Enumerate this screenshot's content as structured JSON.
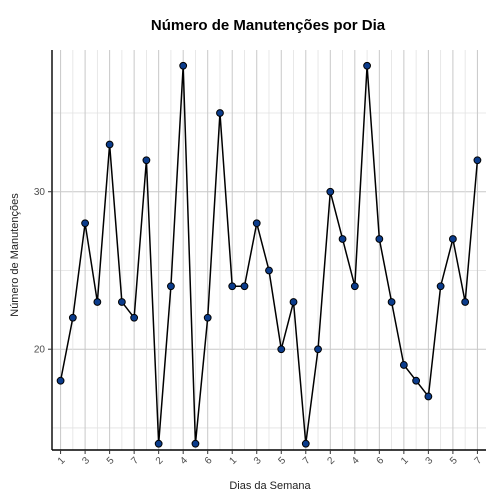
{
  "chart_data": {
    "type": "line",
    "title": "Número de Manutenções por Dia",
    "xlabel": "Dias da Semana",
    "ylabel": "Número de Manutenções",
    "x_tick_labels": [
      "1",
      "3",
      "5",
      "7",
      "2",
      "4",
      "6",
      "1",
      "3",
      "5",
      "7",
      "2",
      "4",
      "6",
      "1",
      "3",
      "5",
      "7"
    ],
    "y_ticks": [
      20,
      30
    ],
    "ylim": [
      13.6,
      39.0
    ],
    "grid": true,
    "colors": {
      "line": "#000000",
      "point_fill": "#0b3c8c"
    },
    "series": [
      {
        "x": [
          "1",
          "2",
          "3",
          "4",
          "5",
          "6",
          "7",
          "1",
          "2",
          "3",
          "4",
          "5",
          "6",
          "7",
          "1",
          "2",
          "3",
          "4",
          "5",
          "6",
          "7",
          "1",
          "2",
          "3",
          "4",
          "5",
          "6",
          "7",
          "1",
          "2",
          "3",
          "4",
          "5",
          "6",
          "7"
        ],
        "values": [
          18,
          22,
          28,
          23,
          33,
          23,
          22,
          32,
          14,
          24,
          38,
          14,
          22,
          35,
          24,
          24,
          28,
          25,
          20,
          23,
          14,
          20,
          30,
          27,
          24,
          38,
          27,
          23,
          19,
          18,
          17,
          24,
          27,
          23,
          32
        ]
      }
    ]
  }
}
